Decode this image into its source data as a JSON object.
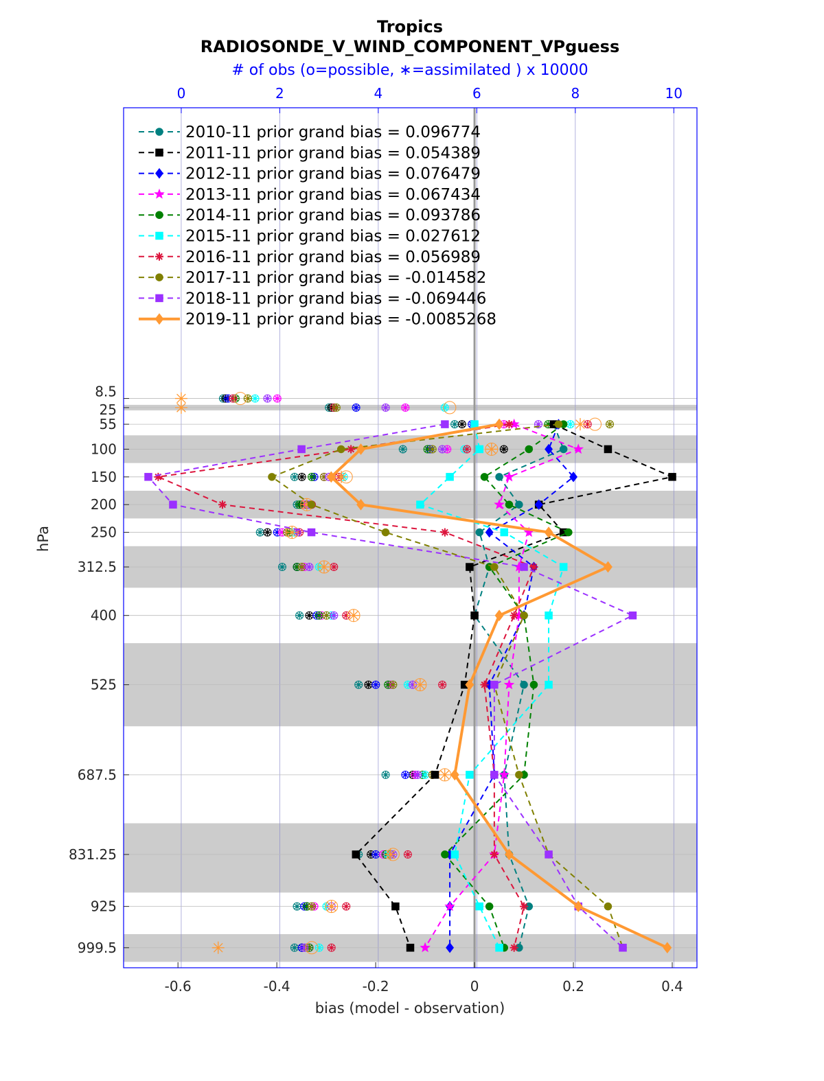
{
  "chart_data": {
    "type": "line",
    "title": "Tropics",
    "subtitle": "RADIOSONDE_V_WIND_COMPONENT_VPguess",
    "top_axis_label": "# of obs (o=possible, ∗=assimilated ) x 10000",
    "xlabel": "bias (model - observation)",
    "ylabel": "hPa",
    "xlim": [
      -0.71,
      0.45
    ],
    "x_ticks": [
      -0.6,
      -0.4,
      -0.2,
      0,
      0.2,
      0.4
    ],
    "x_tick_labels": [
      "-0.6",
      "-0.4",
      "-0.2",
      "0",
      "0.2",
      "0.4"
    ],
    "top_xlim": [
      -1.17,
      10.47
    ],
    "top_ticks": [
      0,
      2,
      4,
      6,
      8,
      10
    ],
    "top_tick_labels": [
      "0",
      "2",
      "4",
      "6",
      "8",
      "10"
    ],
    "y_scale": "pressure (reversed)",
    "levels": [
      8.5,
      25,
      55,
      100,
      150,
      200,
      250,
      312.5,
      400,
      525,
      687.5,
      831.25,
      925,
      999.5
    ],
    "level_labels": [
      "8.5",
      "25",
      "55",
      "100",
      "150",
      "200",
      "250",
      "312.5",
      "400",
      "525",
      "687.5",
      "831.25",
      "925",
      "999.5"
    ],
    "shaded_layers": [
      [
        20,
        30
      ],
      [
        75,
        125
      ],
      [
        175,
        225
      ],
      [
        275,
        350
      ],
      [
        450,
        600
      ],
      [
        775,
        900
      ],
      [
        975,
        1025
      ]
    ],
    "legend_position": "top-left",
    "series": [
      {
        "name": "2010-11 prior grand bias = 0.096774",
        "color": "#008080",
        "marker": "circle",
        "bias": [
          null,
          null,
          0.16,
          0.18,
          0.05,
          0.09,
          0.01,
          0.03,
          0.0,
          0.1,
          0.06,
          0.07,
          0.11,
          0.09
        ],
        "obs_possible": [
          0.85,
          3.0,
          5.55,
          4.5,
          2.3,
          2.35,
          1.6,
          2.05,
          2.4,
          3.6,
          4.15,
          3.6,
          2.35,
          2.3
        ],
        "obs_assimilated": [
          0.85,
          3.0,
          5.55,
          4.5,
          2.3,
          2.35,
          1.6,
          2.05,
          2.4,
          3.6,
          4.15,
          3.6,
          2.35,
          2.3
        ]
      },
      {
        "name": "2011-11 prior grand bias = 0.054389",
        "color": "#000000",
        "marker": "square",
        "bias": [
          null,
          null,
          0.16,
          0.27,
          0.4,
          0.13,
          0.18,
          -0.01,
          0.0,
          -0.02,
          -0.08,
          -0.24,
          -0.16,
          -0.13
        ],
        "obs_possible": [
          0.9,
          3.05,
          5.7,
          6.55,
          2.45,
          2.45,
          1.75,
          2.35,
          2.6,
          3.8,
          4.7,
          3.85,
          2.55,
          2.45
        ],
        "obs_assimilated": [
          0.9,
          3.05,
          5.7,
          6.55,
          2.45,
          2.45,
          1.75,
          2.35,
          2.6,
          3.8,
          4.7,
          3.85,
          2.55,
          2.45
        ]
      },
      {
        "name": "2012-11 prior grand bias = 0.076479",
        "color": "#0000ff",
        "marker": "diamond",
        "bias": [
          null,
          null,
          0.17,
          0.15,
          0.2,
          0.13,
          0.03,
          0.12,
          0.1,
          0.03,
          0.04,
          -0.05,
          -0.05,
          -0.05
        ],
        "obs_possible": [
          0.95,
          3.55,
          5.9,
          5.05,
          2.7,
          2.55,
          1.95,
          2.35,
          2.75,
          3.95,
          4.55,
          3.95,
          2.5,
          2.45
        ],
        "obs_assimilated": [
          0.95,
          3.55,
          5.9,
          5.05,
          2.7,
          2.55,
          1.95,
          2.35,
          2.75,
          3.95,
          4.55,
          3.95,
          2.5,
          2.45
        ]
      },
      {
        "name": "2013-11 prior grand bias = 0.067434",
        "color": "#ff00ff",
        "marker": "star",
        "bias": [
          null,
          null,
          0.08,
          0.21,
          0.07,
          0.05,
          0.11,
          0.09,
          0.09,
          0.07,
          0.06,
          0.04,
          -0.05,
          -0.1
        ],
        "obs_possible": [
          1.95,
          4.55,
          6.55,
          5.4,
          2.9,
          2.5,
          2.05,
          2.5,
          2.85,
          4.25,
          4.75,
          4.1,
          2.7,
          2.6
        ],
        "obs_assimilated": [
          1.95,
          4.55,
          6.55,
          5.4,
          2.9,
          2.5,
          2.05,
          2.5,
          2.85,
          4.25,
          4.75,
          4.1,
          2.7,
          2.6
        ]
      },
      {
        "name": "2014-11 prior grand bias = 0.093786",
        "color": "#008000",
        "marker": "hexagon",
        "bias": [
          null,
          null,
          0.18,
          0.11,
          0.02,
          0.07,
          0.19,
          0.03,
          0.1,
          0.12,
          0.1,
          -0.06,
          0.03,
          0.06
        ],
        "obs_possible": [
          1.1,
          3.1,
          7.45,
          5.0,
          2.65,
          2.4,
          2.2,
          2.35,
          2.8,
          4.2,
          4.9,
          4.15,
          2.55,
          2.6
        ],
        "obs_assimilated": [
          1.1,
          3.1,
          7.45,
          5.0,
          2.65,
          2.4,
          2.2,
          2.35,
          2.8,
          4.2,
          4.9,
          4.15,
          2.55,
          2.6
        ]
      },
      {
        "name": "2015-11 prior grand bias = 0.027612",
        "color": "#00ffff",
        "marker": "square",
        "bias": [
          null,
          null,
          0.0,
          0.01,
          -0.05,
          -0.11,
          0.06,
          0.18,
          0.15,
          0.15,
          -0.01,
          -0.04,
          0.01,
          0.05
        ],
        "obs_possible": [
          1.5,
          5.35,
          7.9,
          5.75,
          3.3,
          2.65,
          2.3,
          2.8,
          3.05,
          4.6,
          4.95,
          4.2,
          2.95,
          2.8
        ],
        "obs_assimilated": [
          1.5,
          5.35,
          7.9,
          5.75,
          3.3,
          2.65,
          2.3,
          2.8,
          3.05,
          4.6,
          4.95,
          4.2,
          2.95,
          2.8
        ]
      },
      {
        "name": "2016-11 prior grand bias = 0.056989",
        "color": "#dc143c",
        "marker": "asterisk",
        "bias": [
          null,
          null,
          0.07,
          -0.25,
          -0.64,
          -0.51,
          -0.06,
          0.12,
          0.08,
          0.02,
          0.04,
          0.04,
          0.1,
          0.08
        ],
        "obs_possible": [
          1.05,
          3.1,
          8.25,
          5.8,
          3.2,
          2.65,
          2.4,
          3.1,
          3.35,
          5.3,
          5.1,
          4.6,
          3.35,
          3.05
        ],
        "obs_assimilated": [
          1.05,
          3.1,
          8.25,
          5.8,
          3.2,
          2.65,
          2.4,
          3.1,
          3.35,
          5.3,
          5.1,
          4.6,
          3.35,
          3.05
        ]
      },
      {
        "name": "2017-11 prior grand bias = -0.014582",
        "color": "#808000",
        "marker": "circle",
        "bias": [
          null,
          null,
          0.17,
          -0.27,
          -0.41,
          -0.33,
          -0.18,
          0.04,
          0.1,
          0.04,
          0.09,
          0.15,
          0.27,
          0.3
        ],
        "obs_possible": [
          1.35,
          3.15,
          8.7,
          5.1,
          2.9,
          2.55,
          2.15,
          2.45,
          2.95,
          4.3,
          5.1,
          4.25,
          2.65,
          2.55
        ],
        "obs_assimilated": [
          1.35,
          3.15,
          8.7,
          5.1,
          2.9,
          2.55,
          2.15,
          2.45,
          2.95,
          4.3,
          5.1,
          4.25,
          2.65,
          2.55
        ]
      },
      {
        "name": "2018-11 prior grand bias = -0.069446",
        "color": "#9b30ff",
        "marker": "square",
        "bias": [
          null,
          null,
          -0.06,
          -0.35,
          -0.66,
          -0.61,
          -0.33,
          0.1,
          0.32,
          0.04,
          0.04,
          0.15,
          0.21,
          0.3
        ],
        "obs_possible": [
          1.75,
          4.15,
          7.25,
          5.3,
          3.0,
          2.6,
          2.35,
          2.6,
          3.1,
          4.7,
          4.8,
          4.3,
          3.05,
          2.5
        ],
        "obs_assimilated": [
          1.75,
          4.15,
          7.25,
          5.3,
          3.0,
          2.6,
          2.35,
          2.6,
          3.1,
          4.7,
          4.8,
          4.3,
          3.05,
          2.5
        ]
      },
      {
        "name": "2019-11 prior grand bias = -0.0085268",
        "color": "#ff9933",
        "marker": "diamond",
        "line_width": "thick",
        "bias": [
          null,
          null,
          0.05,
          -0.23,
          -0.29,
          -0.23,
          0.15,
          0.27,
          0.05,
          -0.01,
          -0.04,
          0.07,
          0.21,
          0.39
        ],
        "obs_possible": [
          1.2,
          5.45,
          8.4,
          6.3,
          3.35,
          2.55,
          2.25,
          2.9,
          3.5,
          4.85,
          5.35,
          4.3,
          3.05,
          2.65
        ],
        "obs_assimilated": [
          0.0,
          0.0,
          8.1,
          6.3,
          3.25,
          2.55,
          2.25,
          2.9,
          3.5,
          4.85,
          5.35,
          4.25,
          3.05,
          0.75
        ]
      }
    ]
  }
}
